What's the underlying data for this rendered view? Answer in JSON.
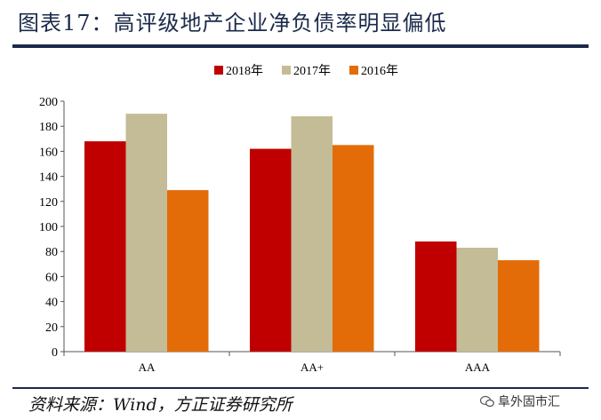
{
  "title": "图表17：高评级地产企业净负债率明显偏低",
  "source": "资料来源：Wind，方正证券研究所",
  "watermark": "阜外固市汇",
  "chart_data": {
    "type": "bar",
    "categories": [
      "AA",
      "AA+",
      "AAA"
    ],
    "series": [
      {
        "name": "2018年",
        "color": "#c00000",
        "values": [
          168,
          162,
          88
        ]
      },
      {
        "name": "2017年",
        "color": "#c4bc96",
        "values": [
          190,
          188,
          83
        ]
      },
      {
        "name": "2016年",
        "color": "#e36c09",
        "values": [
          129,
          165,
          73
        ]
      }
    ],
    "ylim": [
      0,
      200
    ],
    "yticks": [
      "0",
      "20",
      "40",
      "60",
      "80",
      "100",
      "120",
      "140",
      "160",
      "180",
      "200"
    ],
    "legend_position": "top-center",
    "grid": false
  }
}
